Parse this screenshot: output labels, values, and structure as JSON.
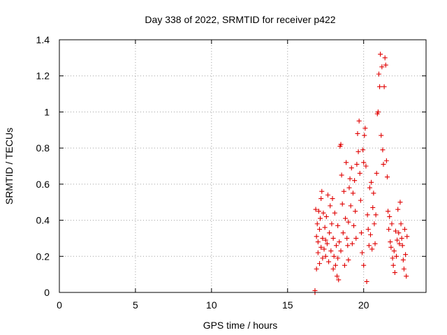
{
  "chart_data": {
    "type": "scatter",
    "title": "Day 338 of 2022, SRMTID for receiver p422",
    "xlabel": "GPS time / hours",
    "ylabel": "SRMTID / TECUs",
    "xlim": [
      0,
      24.1
    ],
    "ylim": [
      0,
      1.4
    ],
    "xticks": [
      0,
      5,
      10,
      15,
      20
    ],
    "yticks": [
      0,
      0.2,
      0.4,
      0.6,
      0.8,
      1,
      1.2,
      1.4
    ],
    "ytick_labels": [
      "0",
      "0.2",
      "0.4",
      "0.6",
      "0.8",
      "1",
      "1.2",
      "1.4"
    ],
    "grid": true,
    "marker": "+",
    "series": [
      {
        "name": "p422",
        "color": "#e00000",
        "points": [
          [
            16.8,
            0.0
          ],
          [
            16.8,
            0.01
          ],
          [
            16.85,
            0.46
          ],
          [
            16.9,
            0.13
          ],
          [
            16.9,
            0.31
          ],
          [
            16.95,
            0.38
          ],
          [
            17.0,
            0.28
          ],
          [
            17.0,
            0.22
          ],
          [
            17.05,
            0.45
          ],
          [
            17.1,
            0.16
          ],
          [
            17.1,
            0.35
          ],
          [
            17.15,
            0.41
          ],
          [
            17.2,
            0.25
          ],
          [
            17.2,
            0.52
          ],
          [
            17.25,
            0.56
          ],
          [
            17.3,
            0.3
          ],
          [
            17.3,
            0.19
          ],
          [
            17.35,
            0.44
          ],
          [
            17.4,
            0.24
          ],
          [
            17.45,
            0.36
          ],
          [
            17.5,
            0.2
          ],
          [
            17.5,
            0.29
          ],
          [
            17.55,
            0.42
          ],
          [
            17.6,
            0.27
          ],
          [
            17.65,
            0.54
          ],
          [
            17.7,
            0.17
          ],
          [
            17.75,
            0.33
          ],
          [
            17.8,
            0.48
          ],
          [
            17.85,
            0.23
          ],
          [
            17.9,
            0.38
          ],
          [
            17.95,
            0.52
          ],
          [
            18.0,
            0.13
          ],
          [
            18.0,
            0.3
          ],
          [
            18.05,
            0.2
          ],
          [
            18.1,
            0.44
          ],
          [
            18.15,
            0.15
          ],
          [
            18.2,
            0.26
          ],
          [
            18.25,
            0.09
          ],
          [
            18.3,
            0.37
          ],
          [
            18.3,
            0.19
          ],
          [
            18.35,
            0.07
          ],
          [
            18.4,
            0.28
          ],
          [
            18.45,
            0.81
          ],
          [
            18.5,
            0.82
          ],
          [
            18.5,
            0.23
          ],
          [
            18.55,
            0.65
          ],
          [
            18.6,
            0.49
          ],
          [
            18.65,
            0.33
          ],
          [
            18.7,
            0.56
          ],
          [
            18.75,
            0.15
          ],
          [
            18.8,
            0.41
          ],
          [
            18.85,
            0.72
          ],
          [
            18.9,
            0.3
          ],
          [
            18.95,
            0.26
          ],
          [
            19.0,
            0.39
          ],
          [
            19.0,
            0.18
          ],
          [
            19.05,
            0.58
          ],
          [
            19.1,
            0.63
          ],
          [
            19.15,
            0.48
          ],
          [
            19.2,
            0.69
          ],
          [
            19.25,
            0.27
          ],
          [
            19.3,
            0.55
          ],
          [
            19.35,
            0.37
          ],
          [
            19.4,
            0.62
          ],
          [
            19.45,
            0.45
          ],
          [
            19.5,
            0.3
          ],
          [
            19.55,
            0.71
          ],
          [
            19.6,
            0.88
          ],
          [
            19.65,
            0.78
          ],
          [
            19.7,
            0.95
          ],
          [
            19.75,
            0.66
          ],
          [
            19.8,
            0.51
          ],
          [
            19.85,
            0.33
          ],
          [
            19.9,
            0.22
          ],
          [
            19.95,
            0.79
          ],
          [
            20.0,
            0.72
          ],
          [
            20.0,
            0.15
          ],
          [
            20.05,
            0.87
          ],
          [
            20.1,
            0.91
          ],
          [
            20.15,
            0.7
          ],
          [
            20.2,
            0.06
          ],
          [
            20.25,
            0.43
          ],
          [
            20.3,
            0.35
          ],
          [
            20.35,
            0.26
          ],
          [
            20.4,
            0.58
          ],
          [
            20.45,
            0.32
          ],
          [
            20.5,
            0.61
          ],
          [
            20.55,
            0.24
          ],
          [
            20.6,
            0.47
          ],
          [
            20.65,
            0.55
          ],
          [
            20.7,
            0.38
          ],
          [
            20.75,
            0.27
          ],
          [
            20.8,
            0.43
          ],
          [
            20.85,
            0.66
          ],
          [
            20.9,
            0.99
          ],
          [
            20.95,
            1.0
          ],
          [
            21.0,
            1.21
          ],
          [
            21.05,
            1.14
          ],
          [
            21.1,
            1.32
          ],
          [
            21.15,
            0.87
          ],
          [
            21.2,
            1.25
          ],
          [
            21.25,
            0.79
          ],
          [
            21.3,
            0.71
          ],
          [
            21.35,
            1.14
          ],
          [
            21.4,
            1.3
          ],
          [
            21.45,
            1.26
          ],
          [
            21.5,
            0.73
          ],
          [
            21.55,
            0.64
          ],
          [
            21.6,
            0.45
          ],
          [
            21.65,
            0.35
          ],
          [
            21.7,
            0.42
          ],
          [
            21.75,
            0.28
          ],
          [
            21.8,
            0.25
          ],
          [
            21.85,
            0.38
          ],
          [
            21.9,
            0.19
          ],
          [
            21.95,
            0.15
          ],
          [
            22.0,
            0.23
          ],
          [
            22.05,
            0.11
          ],
          [
            22.1,
            0.34
          ],
          [
            22.15,
            0.2
          ],
          [
            22.2,
            0.29
          ],
          [
            22.25,
            0.46
          ],
          [
            22.3,
            0.33
          ],
          [
            22.35,
            0.27
          ],
          [
            22.4,
            0.5
          ],
          [
            22.45,
            0.38
          ],
          [
            22.5,
            0.3
          ],
          [
            22.55,
            0.26
          ],
          [
            22.6,
            0.18
          ],
          [
            22.65,
            0.13
          ],
          [
            22.7,
            0.35
          ],
          [
            22.75,
            0.21
          ],
          [
            22.8,
            0.09
          ],
          [
            22.85,
            0.31
          ]
        ]
      }
    ]
  }
}
